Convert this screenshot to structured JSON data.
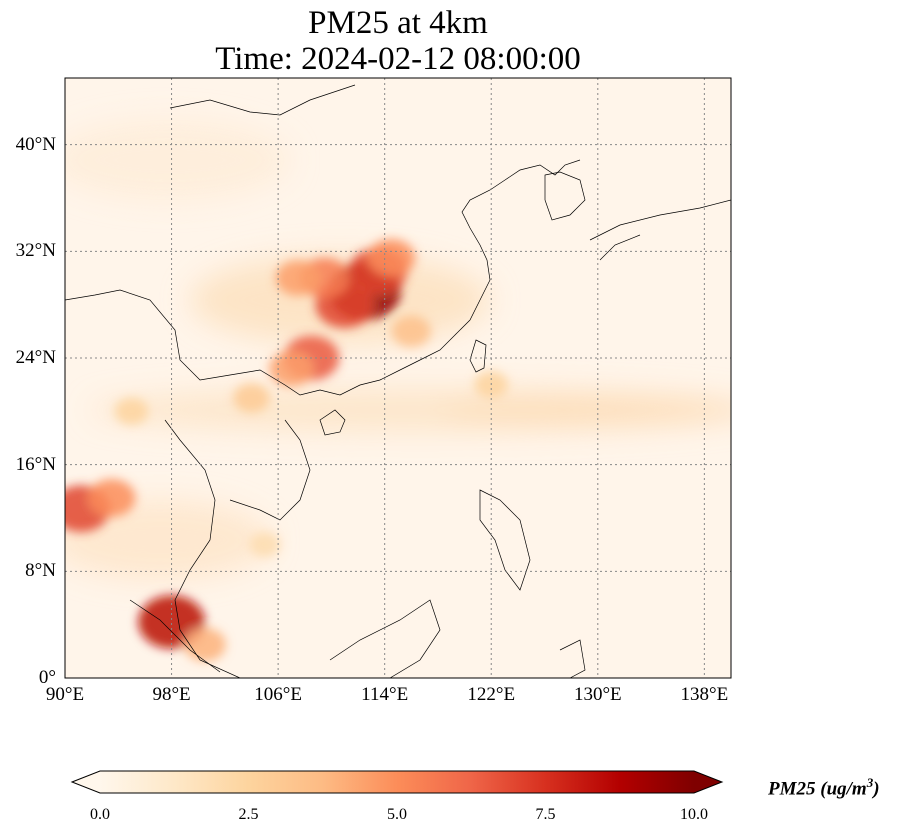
{
  "title": {
    "line1": "PM25 at 4km",
    "line2": "Time: 2024-02-12 08:00:00"
  },
  "map": {
    "lon_range": [
      90,
      140
    ],
    "lat_range": [
      0,
      45
    ],
    "gridlines": true,
    "lat_ticks": [
      {
        "value": 0,
        "label": "0°"
      },
      {
        "value": 8,
        "label": "8°N"
      },
      {
        "value": 16,
        "label": "16°N"
      },
      {
        "value": 24,
        "label": "24°N"
      },
      {
        "value": 32,
        "label": "32°N"
      },
      {
        "value": 40,
        "label": "40°N"
      }
    ],
    "lon_ticks": [
      {
        "value": 90,
        "label": "90°E"
      },
      {
        "value": 98,
        "label": "98°E"
      },
      {
        "value": 106,
        "label": "106°E"
      },
      {
        "value": 114,
        "label": "114°E"
      },
      {
        "value": 122,
        "label": "122°E"
      },
      {
        "value": 130,
        "label": "130°E"
      },
      {
        "value": 138,
        "label": "138°E"
      }
    ],
    "high_concentration_areas": [
      {
        "lon": 112.5,
        "lat": 29.0,
        "level": 9.5
      },
      {
        "lon": 113.5,
        "lat": 30.5,
        "level": 7
      },
      {
        "lon": 111.0,
        "lat": 28.0,
        "level": 7
      },
      {
        "lon": 109.5,
        "lat": 30.0,
        "level": 5.5
      },
      {
        "lon": 114.5,
        "lat": 31.5,
        "level": 5
      },
      {
        "lon": 107.5,
        "lat": 30.0,
        "level": 4.5
      },
      {
        "lon": 108.5,
        "lat": 24.0,
        "level": 6.5
      },
      {
        "lon": 107.0,
        "lat": 23.2,
        "level": 4.5
      },
      {
        "lon": 116.0,
        "lat": 26.0,
        "level": 3.5
      },
      {
        "lon": 98.0,
        "lat": 4.2,
        "level": 8.5
      },
      {
        "lon": 91.2,
        "lat": 12.7,
        "level": 7
      },
      {
        "lon": 93.5,
        "lat": 13.5,
        "level": 5
      },
      {
        "lon": 100.5,
        "lat": 2.5,
        "level": 4
      },
      {
        "lon": 104.0,
        "lat": 21.0,
        "level": 3
      },
      {
        "lon": 95.0,
        "lat": 20.0,
        "level": 2.5
      },
      {
        "lon": 122.0,
        "lat": 22.0,
        "level": 2.5
      },
      {
        "lon": 105.0,
        "lat": 10.0,
        "level": 2
      }
    ]
  },
  "colorbar": {
    "colormap": "OrRd",
    "vmin": 0.0,
    "vmax": 10.0,
    "extend": "both",
    "colors": [
      "#fff7ec",
      "#fee8c8",
      "#fdd49e",
      "#fdbb84",
      "#fc8d59",
      "#ef6548",
      "#d7301f",
      "#b30000",
      "#7f0000"
    ],
    "ticks": [
      "0.0",
      "2.5",
      "5.0",
      "7.5",
      "10.0"
    ],
    "label": "PM25 (ug/m",
    "label_sup": "3",
    "label_close": ")"
  }
}
